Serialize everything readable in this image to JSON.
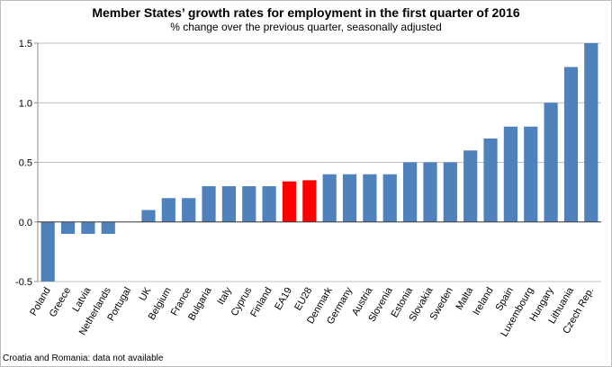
{
  "title": "Member States’ growth rates for employment in the first quarter of 2016",
  "subtitle": "% change over the previous quarter, seasonally adjusted",
  "note": "Croatia and Romania: data not available",
  "colors": {
    "bar": "#4f81bd",
    "highlight": "#ff0000",
    "axis": "#8c8c8c",
    "grid": "#bfbfbf"
  },
  "chart_data": {
    "type": "bar",
    "title": "Member States’ growth rates for employment in the first quarter of 2016",
    "subtitle": "% change over the previous quarter, seasonally adjusted",
    "categories": [
      "Poland",
      "Greece",
      "Latvia",
      "Netherlands",
      "Portugal",
      "UK",
      "Belgium",
      "France",
      "Bulgaria",
      "Italy",
      "Cyprus",
      "Finland",
      "EA19",
      "EU28",
      "Denmark",
      "Germany",
      "Austria",
      "Slovenia",
      "Estonia",
      "Slovakia",
      "Sweden",
      "Malta",
      "Ireland",
      "Spain",
      "Luxembourg",
      "Hungary",
      "Lithuania",
      "Czech Rep."
    ],
    "values": [
      -0.5,
      -0.1,
      -0.1,
      -0.1,
      0.0,
      0.1,
      0.2,
      0.2,
      0.3,
      0.3,
      0.3,
      0.3,
      0.34,
      0.35,
      0.4,
      0.4,
      0.4,
      0.4,
      0.5,
      0.5,
      0.5,
      0.6,
      0.7,
      0.8,
      0.8,
      1.0,
      1.3,
      1.5
    ],
    "highlight": [
      "EA19",
      "EU28"
    ],
    "ylim": [
      -0.5,
      1.5
    ],
    "yticks": [
      "-0.5",
      "0.0",
      "0.5",
      "1.0",
      "1.5"
    ],
    "grid": true,
    "legend": "none"
  }
}
